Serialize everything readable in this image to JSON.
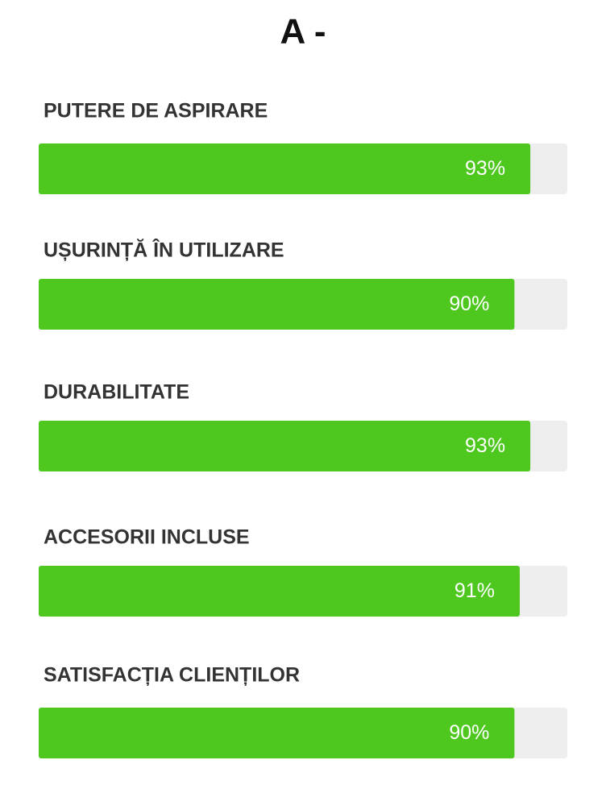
{
  "chart_data": {
    "type": "bar",
    "orientation": "horizontal",
    "title": "A -",
    "categories": [
      "PUTERE DE ASPIRARE",
      "UȘURINȚĂ ÎN UTILIZARE",
      "DURABILITATE",
      "ACCESORII INCLUSE",
      "SATISFACȚIA CLIENȚILOR"
    ],
    "values": [
      93,
      90,
      93,
      91,
      90
    ],
    "value_labels": [
      "93%",
      "90%",
      "93%",
      "91%",
      "90%"
    ],
    "color": "#4ec81f",
    "track_color": "#eeeeee",
    "xlim": [
      0,
      100
    ]
  }
}
